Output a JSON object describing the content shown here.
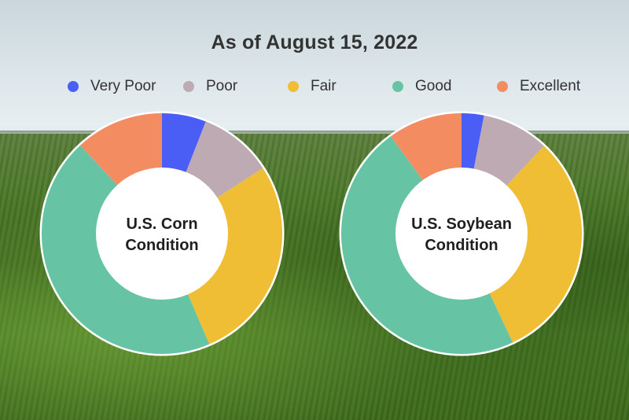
{
  "title": "As of August 15, 2022",
  "legend": [
    {
      "label": "Very Poor",
      "color": "#4a5ef5"
    },
    {
      "label": "Poor",
      "color": "#bdaab3"
    },
    {
      "label": "Fair",
      "color": "#f0be35"
    },
    {
      "label": "Good",
      "color": "#66c3a3"
    },
    {
      "label": "Excellent",
      "color": "#f48c62"
    }
  ],
  "chart_data": [
    {
      "type": "pie",
      "title": "U.S. Corn Condition",
      "title_lines": [
        "U.S. Corn",
        "Condition"
      ],
      "categories": [
        "Very Poor",
        "Poor",
        "Fair",
        "Good",
        "Excellent"
      ],
      "values": [
        6,
        10,
        28,
        45,
        12
      ]
    },
    {
      "type": "pie",
      "title": "U.S. Soybean Condition",
      "title_lines": [
        "U.S. Soybean",
        "Condition"
      ],
      "categories": [
        "Very Poor",
        "Poor",
        "Fair",
        "Good",
        "Excellent"
      ],
      "values": [
        3,
        9,
        31,
        47,
        10
      ]
    }
  ]
}
